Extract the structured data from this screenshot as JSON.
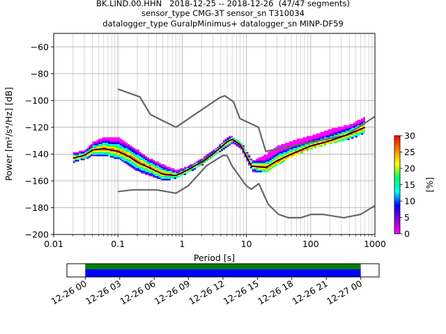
{
  "title_lines": [
    "BK.LIND.00.HHN   2018-12-25 -- 2018-12-26  (47/47 segments)",
    "sensor_type CMG-3T sensor_sn T310034",
    "datalogger_type GuralpMinimus+ datalogger_sn MINP-DF59"
  ],
  "chart_data": {
    "type": "heatmap",
    "xlabel": "Period [s]",
    "ylabel": "Power [m²/s⁴/Hz] [dB]",
    "xscale": "log",
    "xlim": [
      0.01,
      1000
    ],
    "ylim": [
      -200,
      -50
    ],
    "grid": true,
    "x_ticks": [
      {
        "value": 0.01,
        "label": "0.01"
      },
      {
        "value": 0.1,
        "label": "0.1"
      },
      {
        "value": 1,
        "label": "1"
      },
      {
        "value": 10,
        "label": "10"
      },
      {
        "value": 100,
        "label": "100"
      },
      {
        "value": 1000,
        "label": "1000"
      }
    ],
    "y_ticks": [
      -60,
      -80,
      -100,
      -120,
      -140,
      -160,
      -180,
      -200
    ],
    "colorbar": {
      "label": "[%]",
      "range": [
        0,
        30
      ],
      "ticks": [
        0,
        5,
        10,
        15,
        20,
        25,
        30
      ],
      "colors": [
        "#ff00ff",
        "#9400d3",
        "#0000ff",
        "#00ffff",
        "#00ff66",
        "#ffff00",
        "#ff7f00",
        "#ff0000"
      ]
    },
    "nhnm": {
      "color": "#666666",
      "x": [
        0.1,
        0.22,
        0.32,
        0.8,
        3.8,
        4.6,
        6.3,
        7.9,
        15.4,
        20,
        354.8,
        1000
      ],
      "y": [
        -91.5,
        -97.4,
        -110.5,
        -120,
        -98,
        -96.5,
        -101,
        -113.5,
        -120,
        -138,
        -126,
        -112
      ]
    },
    "nlnm": {
      "color": "#666666",
      "x": [
        0.1,
        0.17,
        0.4,
        0.8,
        1.24,
        2.4,
        4.3,
        5,
        6,
        10,
        12,
        15.6,
        21.9,
        31.6,
        45,
        70,
        101,
        154,
        328,
        600,
        1000
      ],
      "y": [
        -168,
        -166.7,
        -166.7,
        -169.2,
        -163.7,
        -148.6,
        -141.1,
        -141.1,
        -149,
        -163.8,
        -166.2,
        -162.1,
        -177.5,
        -185,
        -187.5,
        -187.5,
        -185,
        -185,
        -187.5,
        -185,
        -178.5
      ]
    },
    "mode": {
      "color": "#000000",
      "x": [
        0.02,
        0.03,
        0.04,
        0.06,
        0.1,
        0.15,
        0.2,
        0.3,
        0.5,
        0.8,
        1.2,
        2,
        3,
        5,
        6,
        8,
        12,
        20,
        30,
        50,
        100,
        200,
        400,
        700
      ],
      "y": [
        -143,
        -141,
        -137,
        -136,
        -138,
        -142,
        -146,
        -150,
        -155,
        -156,
        -152,
        -146,
        -140,
        -131,
        -129,
        -133,
        -149,
        -150,
        -145,
        -140,
        -134,
        -130,
        -125,
        -120
      ]
    },
    "psd_spread": {
      "x": [
        0.02,
        0.03,
        0.04,
        0.06,
        0.1,
        0.15,
        0.2,
        0.3,
        0.5,
        0.8,
        1.2,
        2,
        3,
        5,
        6,
        8,
        12,
        20,
        30,
        50,
        100,
        200,
        400,
        700
      ],
      "upper": [
        -139,
        -137,
        -131,
        -127,
        -128,
        -133,
        -137,
        -143,
        -148,
        -152,
        -149,
        -143,
        -137,
        -127,
        -127,
        -131,
        -145,
        -140,
        -134,
        -130,
        -126,
        -121,
        -118,
        -112
      ],
      "lower": [
        -146,
        -144,
        -141,
        -141,
        -144,
        -149,
        -153,
        -156,
        -160,
        -158,
        -154,
        -148,
        -142,
        -134,
        -132,
        -136,
        -153,
        -153,
        -148,
        -142,
        -136,
        -132,
        -129,
        -124
      ]
    }
  },
  "time_axis": {
    "start_label": "",
    "ticks": [
      "12-26 00",
      "12-26 03",
      "12-26 06",
      "12-26 09",
      "12-26 12",
      "12-26 15",
      "12-26 18",
      "12-26 21",
      "12-27 00"
    ],
    "data_start_hour": 0,
    "data_end_hour": 24,
    "total_hours": 24,
    "pad_left_hours": 1.6,
    "pad_right_hours": 1.6,
    "data_color": "#0000ff",
    "coverage_color": "#008000"
  }
}
